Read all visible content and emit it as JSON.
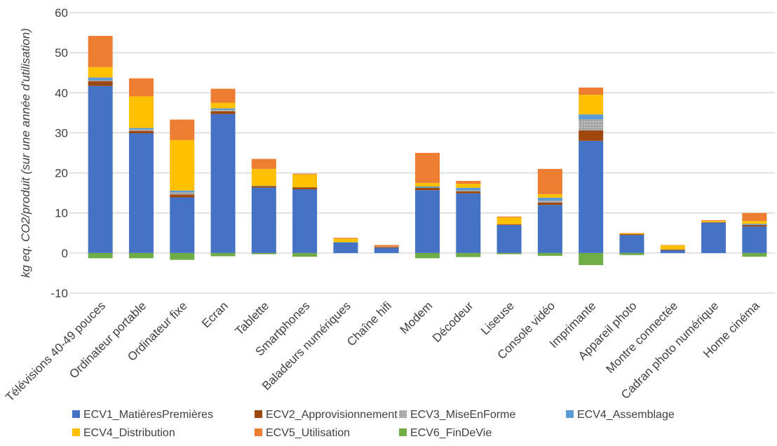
{
  "chart_data": {
    "type": "bar",
    "stacked": true,
    "title": "",
    "xlabel": "",
    "ylabel": "kg eq. CO2/produit (sur une année d'utilisation)",
    "ylim": [
      -10,
      60
    ],
    "yticks": [
      -10,
      0,
      10,
      20,
      30,
      40,
      50,
      60
    ],
    "grid": true,
    "legend": "bottom",
    "categories": [
      "Télévisions 40-49 pouces",
      "Ordinateur portable",
      "Ordinateur fixe",
      "Ecran",
      "Tablette",
      "Smartphones",
      "Baladeurs numériques",
      "Chaîne hifi",
      "Modem",
      "Décodeur",
      "Liseuse",
      "Console vidéo",
      "Imprimante",
      "Appareil photo",
      "Montre connectée",
      "Cadran photo numérique",
      "Home cinéma"
    ],
    "series": [
      {
        "name": "ECV1_MatièresPremières",
        "color": "#4472C4",
        "values": [
          41.7,
          29.9,
          13.9,
          34.7,
          16.3,
          15.9,
          2.6,
          1.3,
          15.7,
          14.9,
          7.0,
          12.0,
          28.0,
          4.5,
          0.7,
          7.6,
          6.6
        ]
      },
      {
        "name": "ECV2_Approvisionnement",
        "color": "#9E480E",
        "values": [
          1.2,
          0.6,
          0.7,
          0.7,
          0.4,
          0.5,
          0.0,
          0.2,
          0.6,
          0.5,
          0.2,
          0.6,
          2.6,
          0.2,
          0.2,
          0.1,
          0.4
        ]
      },
      {
        "name": "ECV3_MiseEnForme",
        "color": "#A5A5A5",
        "pattern": "dotted",
        "values": [
          0.2,
          0.3,
          0.6,
          0.3,
          0.0,
          0.0,
          0.0,
          0.1,
          0.0,
          0.2,
          0.0,
          0.5,
          2.8,
          0.0,
          0.0,
          0.0,
          0.0
        ]
      },
      {
        "name": "ECV4_Assemblage",
        "color": "#5B9BD5",
        "values": [
          0.7,
          0.4,
          0.4,
          0.4,
          0.1,
          0.0,
          0.1,
          0.0,
          0.3,
          0.7,
          0.0,
          0.7,
          1.2,
          0.0,
          0.0,
          0.0,
          0.3
        ]
      },
      {
        "name": "ECV4_Distribution",
        "color": "#FFC000",
        "values": [
          2.6,
          7.9,
          12.6,
          1.4,
          4.2,
          3.2,
          0.9,
          0.0,
          0.9,
          1.0,
          1.7,
          0.9,
          4.9,
          0.2,
          1.0,
          0.3,
          0.7
        ]
      },
      {
        "name": "ECV5_Utilisation",
        "color": "#ED7D31",
        "values": [
          7.8,
          4.5,
          5.1,
          3.5,
          2.5,
          0.2,
          0.2,
          0.4,
          7.5,
          0.7,
          0.2,
          6.3,
          1.8,
          0.1,
          0.1,
          0.2,
          2.0
        ]
      },
      {
        "name": "ECV6_FinDeVie",
        "color": "#70AD47",
        "values": [
          -1.3,
          -1.3,
          -1.7,
          -0.8,
          -0.3,
          -0.9,
          0.0,
          0.0,
          -1.3,
          -1.0,
          -0.3,
          -0.7,
          -3.0,
          -0.5,
          0.0,
          0.0,
          -0.9
        ]
      }
    ]
  }
}
